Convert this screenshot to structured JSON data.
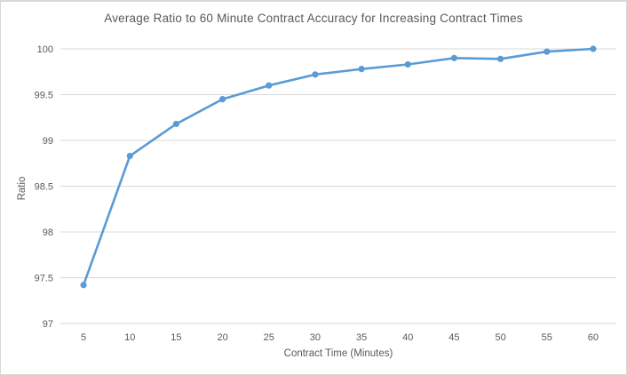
{
  "chart_data": {
    "type": "line",
    "title": "Average Ratio to 60 Minute Contract Accuracy for Increasing Contract Times",
    "xlabel": "Contract Time (Minutes)",
    "ylabel": "Ratio",
    "categories": [
      "5",
      "10",
      "15",
      "20",
      "25",
      "30",
      "35",
      "40",
      "45",
      "50",
      "55",
      "60"
    ],
    "values": [
      97.42,
      98.83,
      99.18,
      99.45,
      99.6,
      99.72,
      99.78,
      99.83,
      99.9,
      99.89,
      99.97,
      100.0
    ],
    "ylim": [
      97,
      100
    ],
    "yticks": [
      97,
      97.5,
      98,
      98.5,
      99,
      99.5,
      100
    ],
    "grid": "horizontal",
    "legend": "none",
    "colors": {
      "series": "#5B9BD5",
      "gridline": "#D9D9D9",
      "text": "#595959",
      "border": "#D9D9D9",
      "background": "#FFFFFF"
    }
  }
}
